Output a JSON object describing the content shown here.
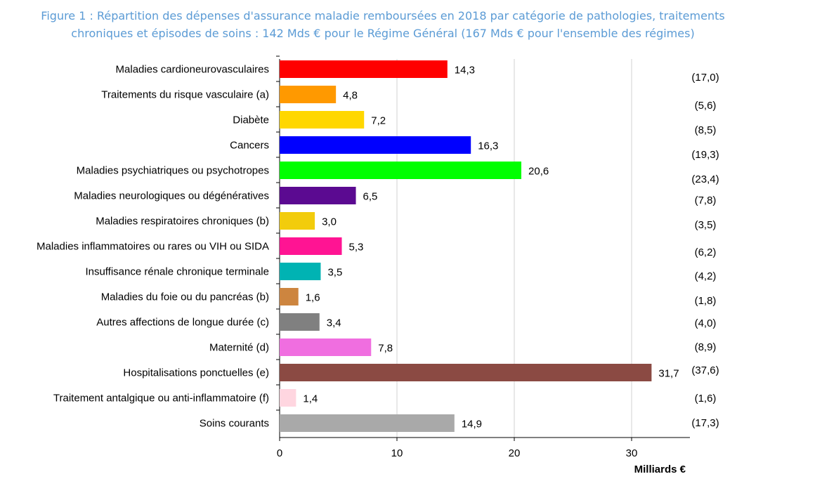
{
  "header": {
    "title_line1": "Figure 1 : Répartition des dépenses d'assurance maladie remboursées en 2018 par catégorie de pathologies, traitements",
    "title_line2": "chroniques et épisodes de soins : 142 Mds € pour le Régime Général (167 Mds € pour l'ensemble des régimes)"
  },
  "chart_data": {
    "type": "bar",
    "orientation": "horizontal",
    "xlabel": "Milliards €",
    "xlim": [
      0,
      35
    ],
    "xticks": [
      "0",
      "10",
      "20",
      "30"
    ],
    "grid": true,
    "categories": [
      "Maladies cardioneurovasculaires",
      "Traitements du risque vasculaire (a)",
      "Diabète",
      "Cancers",
      "Maladies psychiatriques ou psychotropes",
      "Maladies neurologiques ou dégénératives",
      "Maladies respiratoires chroniques (b)",
      "Maladies inflammatoires ou rares ou VIH ou SIDA",
      "Insuffisance rénale chronique terminale",
      "Maladies du foie ou du pancréas (b)",
      "Autres affections de longue durée (c)",
      "Maternité (d)",
      "Hospitalisations ponctuelles (e)",
      "Traitement antalgique ou anti-inflammatoire (f)",
      "Soins courants"
    ],
    "values": [
      14.3,
      4.8,
      7.2,
      16.3,
      20.6,
      6.5,
      3.0,
      5.3,
      3.5,
      1.6,
      3.4,
      7.8,
      31.7,
      1.4,
      14.9
    ],
    "value_labels": [
      "14,3",
      "4,8",
      "7,2",
      "16,3",
      "20,6",
      "6,5",
      "3,0",
      "5,3",
      "3,5",
      "1,6",
      "3,4",
      "7,8",
      "31,7",
      "1,4",
      "14,9"
    ],
    "all_regimes_labels": [
      "(17,0)",
      "(5,6)",
      "(8,5)",
      "(19,3)",
      "(23,4)",
      "(7,8)",
      "(3,5)",
      "(6,2)",
      "(4,2)",
      "(1,8)",
      "(4,0)",
      "(8,9)",
      "(37,6)",
      "(1,6)",
      "(17,3)"
    ],
    "colors": [
      "#ff0000",
      "#ff9900",
      "#ffd700",
      "#0000ff",
      "#00ff00",
      "#5b0a91",
      "#f2cc0c",
      "#ff1493",
      "#00b3b3",
      "#cd853f",
      "#808080",
      "#f06ee0",
      "#8b4a43",
      "#ffd6e0",
      "#a9a9a9"
    ]
  }
}
